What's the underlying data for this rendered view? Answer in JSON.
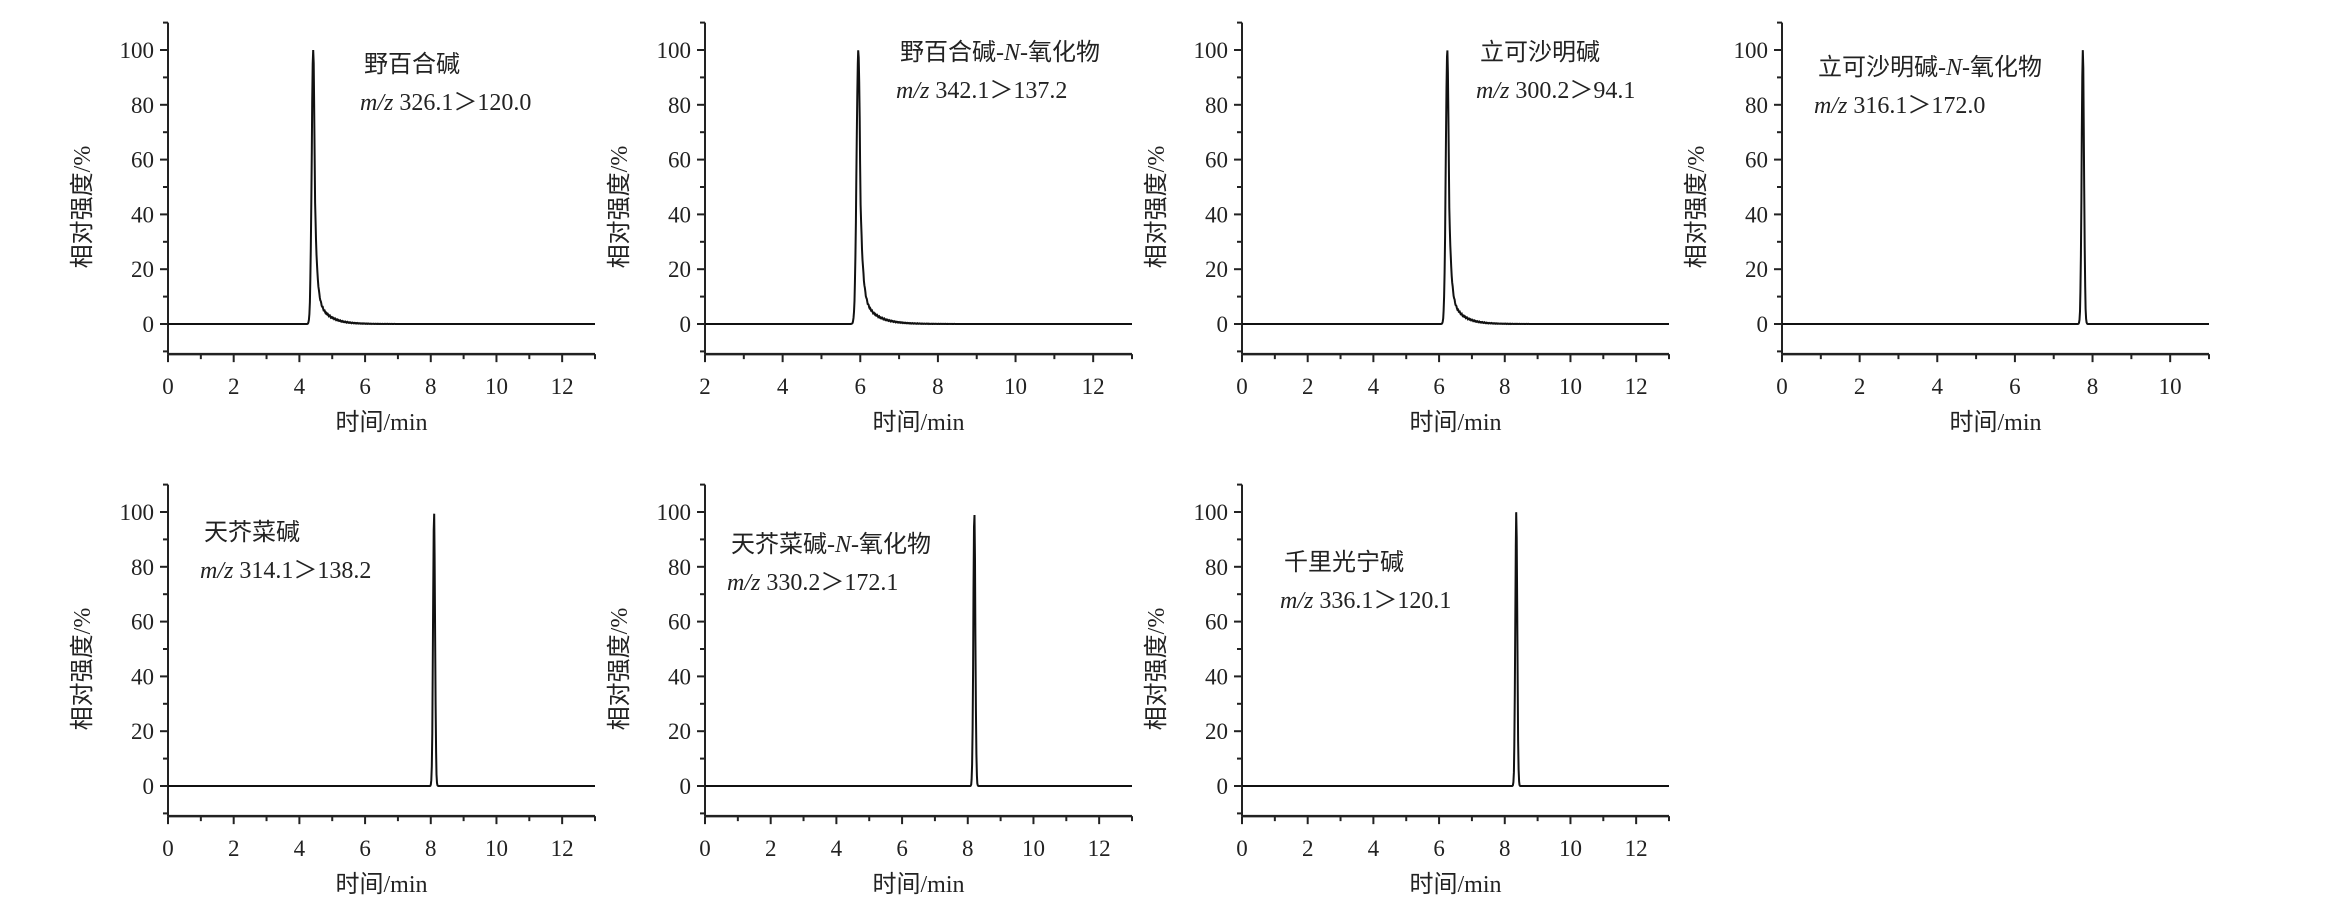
{
  "chart_data": [
    {
      "type": "line",
      "name": "野百合碱",
      "transition": "326.1＞120.0",
      "mz_prefix": "m/z",
      "peak_rt": 4.42,
      "peak_value": 100,
      "tailing": true,
      "xlim": [
        0,
        13
      ],
      "xticks": [
        0,
        2,
        4,
        6,
        8,
        10,
        12
      ],
      "ylim": [
        -11,
        110
      ],
      "yticks": [
        0,
        20,
        40,
        60,
        80,
        100
      ],
      "xlabel": "时间/min",
      "ylabel": "相对强度/%"
    },
    {
      "type": "line",
      "name": "野百合碱-N-氧化物",
      "transition": "342.1＞137.2",
      "mz_prefix": "m/z",
      "peak_rt": 5.95,
      "peak_value": 100,
      "tailing": true,
      "xlim": [
        2,
        13
      ],
      "xticks": [
        2,
        4,
        6,
        8,
        10,
        12
      ],
      "ylim": [
        -11,
        110
      ],
      "yticks": [
        0,
        20,
        40,
        60,
        80,
        100
      ],
      "xlabel": "时间/min",
      "ylabel": "相对强度/%"
    },
    {
      "type": "line",
      "name": "立可沙明碱",
      "transition": "300.2＞94.1",
      "mz_prefix": "m/z",
      "peak_rt": 6.25,
      "peak_value": 100,
      "tailing": true,
      "xlim": [
        0,
        13
      ],
      "xticks": [
        0,
        2,
        4,
        6,
        8,
        10,
        12
      ],
      "ylim": [
        -11,
        110
      ],
      "yticks": [
        0,
        20,
        40,
        60,
        80,
        100
      ],
      "xlabel": "时间/min",
      "ylabel": "相对强度/%"
    },
    {
      "type": "line",
      "name": "立可沙明碱-N-氧化物",
      "transition": "316.1＞172.0",
      "mz_prefix": "m/z",
      "peak_rt": 7.75,
      "peak_value": 100,
      "tailing": false,
      "xlim": [
        0,
        11
      ],
      "xticks": [
        0,
        2,
        4,
        6,
        8,
        10
      ],
      "ylim": [
        -11,
        110
      ],
      "yticks": [
        0,
        20,
        40,
        60,
        80,
        100
      ],
      "xlabel": "时间/min",
      "ylabel": "相对强度/%"
    },
    {
      "type": "line",
      "name": "天芥菜碱",
      "transition": "314.1＞138.2",
      "mz_prefix": "m/z",
      "peak_rt": 8.1,
      "peak_value": 100,
      "tailing": false,
      "xlim": [
        0,
        13
      ],
      "xticks": [
        0,
        2,
        4,
        6,
        8,
        10,
        12
      ],
      "ylim": [
        -11,
        110
      ],
      "yticks": [
        0,
        20,
        40,
        60,
        80,
        100
      ],
      "xlabel": "时间/min",
      "ylabel": "相对强度/%"
    },
    {
      "type": "line",
      "name": "天芥菜碱-N-氧化物",
      "transition": "330.2＞172.1",
      "mz_prefix": "m/z",
      "peak_rt": 8.2,
      "peak_value": 100,
      "tailing": false,
      "xlim": [
        0,
        13
      ],
      "xticks": [
        0,
        2,
        4,
        6,
        8,
        10,
        12
      ],
      "ylim": [
        -11,
        110
      ],
      "yticks": [
        0,
        20,
        40,
        60,
        80,
        100
      ],
      "xlabel": "时间/min",
      "ylabel": "相对强度/%"
    },
    {
      "type": "line",
      "name": "千里光宁碱",
      "transition": "336.1＞120.1",
      "mz_prefix": "m/z",
      "peak_rt": 8.35,
      "peak_value": 100,
      "tailing": false,
      "xlim": [
        0,
        13
      ],
      "xticks": [
        0,
        2,
        4,
        6,
        8,
        10,
        12
      ],
      "ylim": [
        -11,
        110
      ],
      "yticks": [
        0,
        20,
        40,
        60,
        80,
        100
      ],
      "xlabel": "时间/min",
      "ylabel": "相对强度/%"
    }
  ]
}
